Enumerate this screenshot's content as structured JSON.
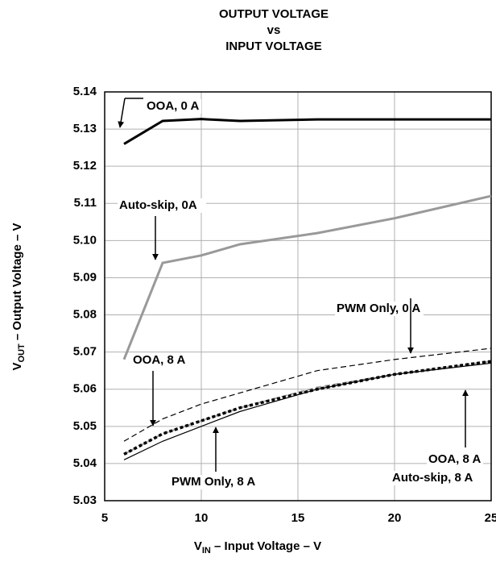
{
  "chart_data": {
    "type": "line",
    "title": [
      "OUTPUT VOLTAGE",
      "vs",
      "INPUT VOLTAGE"
    ],
    "xlabel": {
      "main": "V",
      "sub": "IN",
      "rest": " – Input Voltage – V"
    },
    "ylabel": {
      "main": "V",
      "sub": "OUT",
      "rest": " – Output Voltage – V"
    },
    "xlim": [
      5,
      25
    ],
    "ylim": [
      5.03,
      5.14
    ],
    "xticks": [
      5,
      10,
      15,
      20,
      25
    ],
    "yticks": [
      5.03,
      5.04,
      5.05,
      5.06,
      5.07,
      5.08,
      5.09,
      {
        "value": 5.1,
        "label": "5.10"
      },
      5.11,
      5.12,
      5.13,
      5.14
    ],
    "grid": true,
    "x": [
      6,
      8,
      10,
      12,
      16,
      20,
      25
    ],
    "series": [
      {
        "color": "#000000",
        "dash": "solid",
        "values": [
          5.126,
          5.1322,
          5.1327,
          5.1322,
          5.1326,
          5.1326,
          5.1326
        ]
      },
      {
        "color": "#999999",
        "dash": "solid",
        "values": [
          5.068,
          5.094,
          5.096,
          5.099,
          5.102,
          5.106,
          5.112
        ]
      },
      {
        "color": "#000000",
        "dash": "dashed",
        "values": [
          5.046,
          5.052,
          5.056,
          5.059,
          5.065,
          5.068,
          5.071
        ]
      },
      {
        "color": "#999999",
        "dash": "dashed",
        "values": [
          5.0425,
          5.048,
          5.0515,
          5.055,
          5.0605,
          5.064,
          5.0675
        ]
      },
      {
        "color": "#000000",
        "dash": "dotted",
        "values": [
          5.0425,
          5.048,
          5.0515,
          5.055,
          5.06,
          5.064,
          5.0675
        ]
      },
      {
        "color": "#000000",
        "dash": "solid",
        "values": [
          5.041,
          5.046,
          5.05,
          5.054,
          5.06,
          5.064,
          5.067
        ]
      }
    ],
    "annotations": [
      "OOA, 0 A",
      "Auto-skip, 0A",
      "PWM Only, 0 A",
      "OOA, 8 A",
      "OOA, 8 A",
      "Auto-skip, 8 A",
      "PWM Only, 8 A"
    ]
  }
}
